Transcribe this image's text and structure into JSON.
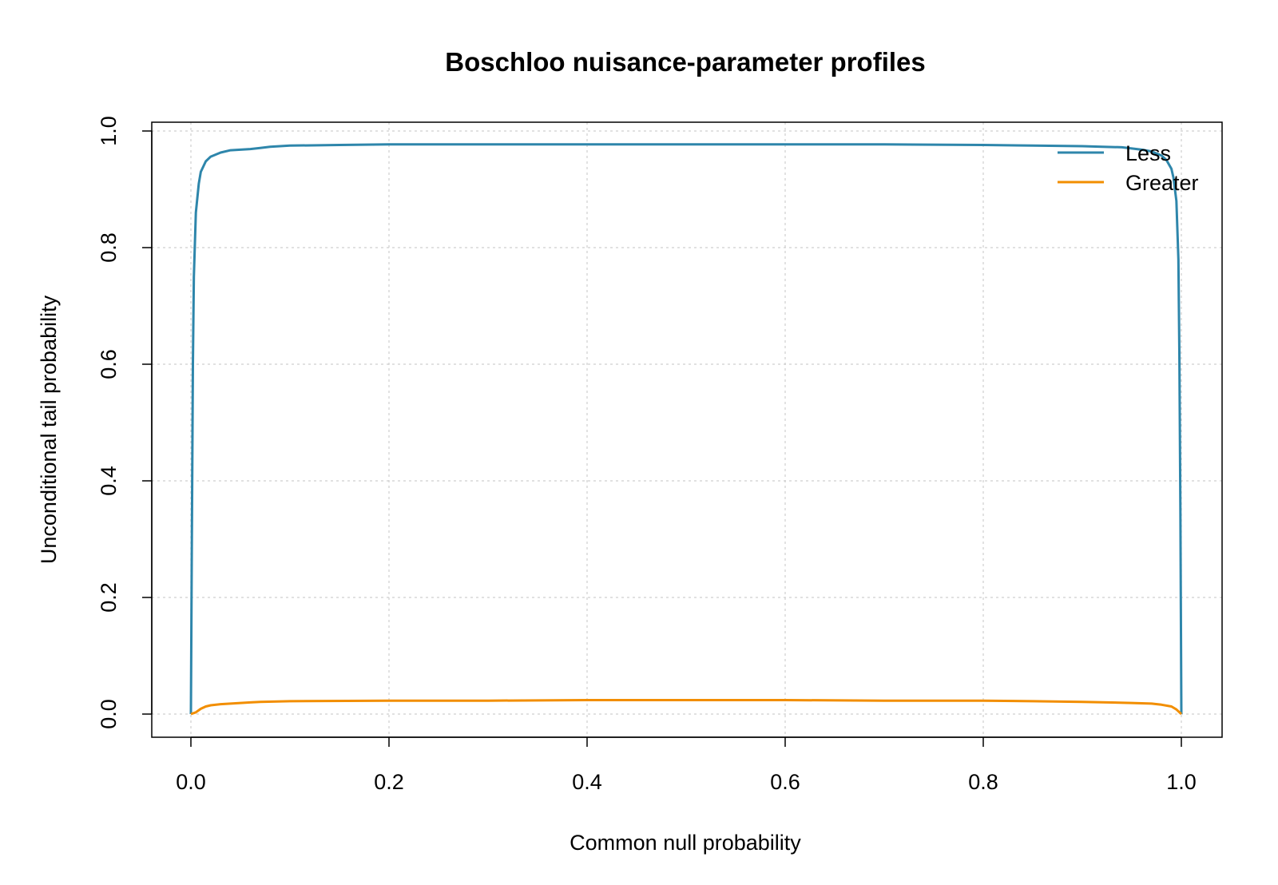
{
  "chart_data": {
    "type": "line",
    "title": "Boschloo nuisance-parameter profiles",
    "xlabel": "Common null probability",
    "ylabel": "Unconditional tail probability",
    "xlim": [
      0,
      1
    ],
    "ylim": [
      0,
      1
    ],
    "x_ticks": [
      "0.0",
      "0.2",
      "0.4",
      "0.6",
      "0.8",
      "1.0"
    ],
    "y_ticks": [
      "0.0",
      "0.2",
      "0.4",
      "0.6",
      "0.8",
      "1.0"
    ],
    "grid": true,
    "legend_position": "top-right",
    "series": [
      {
        "name": "Less",
        "color": "#2E86AB",
        "x": [
          0.0,
          0.001,
          0.002,
          0.003,
          0.005,
          0.008,
          0.01,
          0.015,
          0.02,
          0.03,
          0.04,
          0.05,
          0.06,
          0.07,
          0.08,
          0.1,
          0.15,
          0.2,
          0.3,
          0.4,
          0.5,
          0.6,
          0.7,
          0.8,
          0.85,
          0.9,
          0.92,
          0.94,
          0.95,
          0.96,
          0.97,
          0.98,
          0.985,
          0.99,
          0.992,
          0.995,
          0.997,
          0.998,
          0.999,
          1.0
        ],
        "y": [
          0.0,
          0.3,
          0.6,
          0.75,
          0.86,
          0.91,
          0.93,
          0.948,
          0.956,
          0.963,
          0.967,
          0.968,
          0.969,
          0.971,
          0.973,
          0.975,
          0.976,
          0.977,
          0.977,
          0.977,
          0.977,
          0.977,
          0.977,
          0.976,
          0.975,
          0.974,
          0.973,
          0.972,
          0.97,
          0.968,
          0.965,
          0.958,
          0.95,
          0.935,
          0.92,
          0.88,
          0.78,
          0.62,
          0.35,
          0.0
        ]
      },
      {
        "name": "Greater",
        "color": "#F28E00",
        "x": [
          0.0,
          0.005,
          0.01,
          0.015,
          0.02,
          0.03,
          0.04,
          0.05,
          0.06,
          0.07,
          0.1,
          0.2,
          0.3,
          0.4,
          0.5,
          0.6,
          0.7,
          0.8,
          0.85,
          0.9,
          0.95,
          0.97,
          0.98,
          0.99,
          0.995,
          1.0
        ],
        "y": [
          0.0,
          0.003,
          0.009,
          0.013,
          0.015,
          0.017,
          0.018,
          0.019,
          0.02,
          0.021,
          0.022,
          0.023,
          0.023,
          0.024,
          0.024,
          0.024,
          0.023,
          0.023,
          0.022,
          0.021,
          0.019,
          0.018,
          0.016,
          0.013,
          0.008,
          0.0
        ]
      }
    ]
  }
}
